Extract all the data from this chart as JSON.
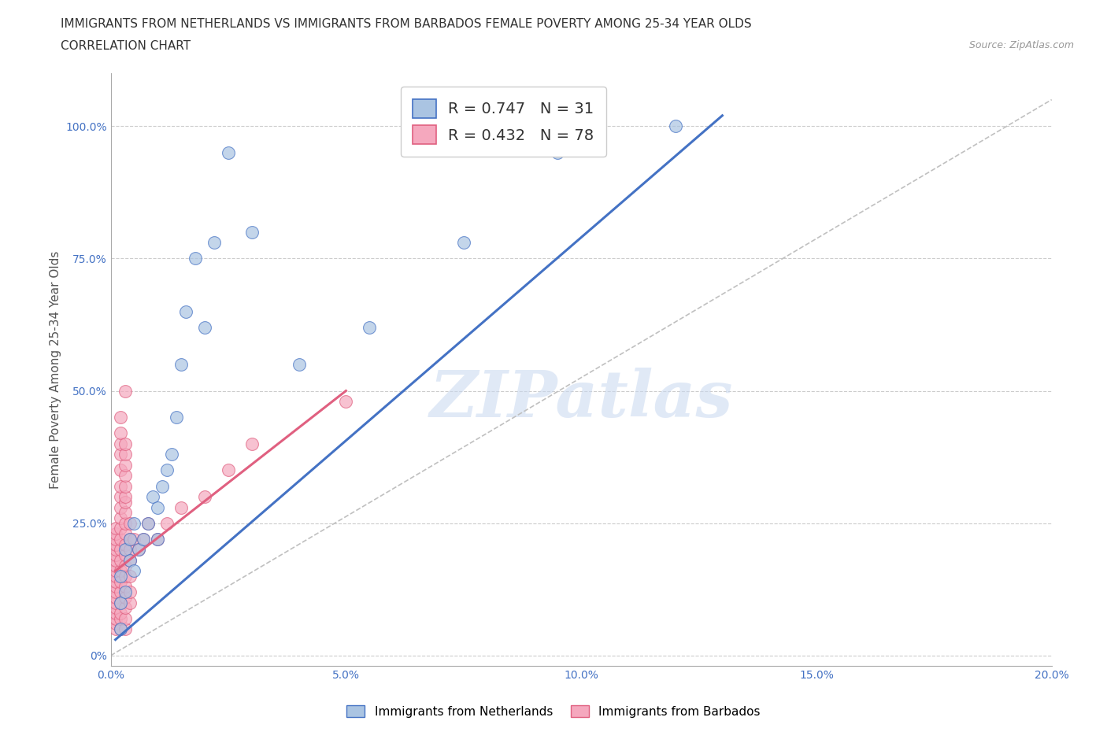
{
  "title_line1": "IMMIGRANTS FROM NETHERLANDS VS IMMIGRANTS FROM BARBADOS FEMALE POVERTY AMONG 25-34 YEAR OLDS",
  "title_line2": "CORRELATION CHART",
  "source_text": "Source: ZipAtlas.com",
  "ylabel": "Female Poverty Among 25-34 Year Olds",
  "xlim": [
    0.0,
    0.2
  ],
  "ylim": [
    -0.02,
    1.1
  ],
  "netherlands_color": "#aac4e2",
  "barbados_color": "#f5a8be",
  "netherlands_line_color": "#4472c4",
  "barbados_line_color": "#e06080",
  "legend_netherlands_label": "Immigrants from Netherlands",
  "legend_barbados_label": "Immigrants from Barbados",
  "netherlands_R": 0.747,
  "netherlands_N": 31,
  "barbados_R": 0.432,
  "barbados_N": 78,
  "ytick_labels": [
    "0%",
    "25.0%",
    "50.0%",
    "75.0%",
    "100.0%"
  ],
  "ytick_values": [
    0.0,
    0.25,
    0.5,
    0.75,
    1.0
  ],
  "xtick_labels": [
    "0.0%",
    "5.0%",
    "10.0%",
    "15.0%",
    "20.0%"
  ],
  "xtick_values": [
    0.0,
    0.05,
    0.1,
    0.15,
    0.2
  ],
  "watermark_text": "ZIPatlas",
  "netherlands_x": [
    0.002,
    0.002,
    0.002,
    0.003,
    0.003,
    0.004,
    0.004,
    0.005,
    0.005,
    0.006,
    0.007,
    0.008,
    0.009,
    0.01,
    0.01,
    0.011,
    0.012,
    0.013,
    0.014,
    0.015,
    0.016,
    0.018,
    0.02,
    0.022,
    0.025,
    0.03,
    0.04,
    0.055,
    0.075,
    0.095,
    0.12
  ],
  "netherlands_y": [
    0.05,
    0.1,
    0.15,
    0.12,
    0.2,
    0.18,
    0.22,
    0.16,
    0.25,
    0.2,
    0.22,
    0.25,
    0.3,
    0.28,
    0.22,
    0.32,
    0.35,
    0.38,
    0.45,
    0.55,
    0.65,
    0.75,
    0.62,
    0.78,
    0.95,
    0.8,
    0.55,
    0.62,
    0.78,
    0.95,
    1.0
  ],
  "barbados_x": [
    0.001,
    0.001,
    0.001,
    0.001,
    0.001,
    0.001,
    0.001,
    0.001,
    0.001,
    0.001,
    0.001,
    0.001,
    0.001,
    0.001,
    0.001,
    0.001,
    0.001,
    0.001,
    0.001,
    0.001,
    0.002,
    0.002,
    0.002,
    0.002,
    0.002,
    0.002,
    0.002,
    0.002,
    0.002,
    0.002,
    0.002,
    0.002,
    0.002,
    0.002,
    0.002,
    0.002,
    0.002,
    0.002,
    0.002,
    0.002,
    0.003,
    0.003,
    0.003,
    0.003,
    0.003,
    0.003,
    0.003,
    0.003,
    0.003,
    0.003,
    0.003,
    0.003,
    0.003,
    0.003,
    0.003,
    0.003,
    0.003,
    0.003,
    0.003,
    0.003,
    0.004,
    0.004,
    0.004,
    0.004,
    0.004,
    0.004,
    0.004,
    0.005,
    0.006,
    0.007,
    0.008,
    0.01,
    0.012,
    0.015,
    0.02,
    0.025,
    0.03,
    0.05
  ],
  "barbados_y": [
    0.05,
    0.06,
    0.07,
    0.08,
    0.09,
    0.1,
    0.11,
    0.12,
    0.13,
    0.14,
    0.15,
    0.16,
    0.17,
    0.18,
    0.19,
    0.2,
    0.21,
    0.22,
    0.23,
    0.24,
    0.05,
    0.07,
    0.08,
    0.1,
    0.12,
    0.14,
    0.16,
    0.18,
    0.2,
    0.22,
    0.24,
    0.26,
    0.28,
    0.3,
    0.32,
    0.35,
    0.38,
    0.4,
    0.42,
    0.45,
    0.05,
    0.07,
    0.09,
    0.11,
    0.13,
    0.15,
    0.17,
    0.19,
    0.21,
    0.23,
    0.25,
    0.27,
    0.29,
    0.3,
    0.32,
    0.34,
    0.36,
    0.38,
    0.4,
    0.5,
    0.1,
    0.12,
    0.15,
    0.18,
    0.2,
    0.22,
    0.25,
    0.22,
    0.2,
    0.22,
    0.25,
    0.22,
    0.25,
    0.28,
    0.3,
    0.35,
    0.4,
    0.48
  ],
  "background_color": "#ffffff",
  "grid_color": "#cccccc",
  "title_fontsize": 11,
  "axis_label_fontsize": 11,
  "tick_fontsize": 10,
  "nl_line_x0": 0.001,
  "nl_line_x1": 0.13,
  "nl_line_y0": 0.03,
  "nl_line_y1": 1.02,
  "bb_line_x0": 0.001,
  "bb_line_x1": 0.05,
  "bb_line_y0": 0.16,
  "bb_line_y1": 0.5,
  "ref_line_x0": 0.0,
  "ref_line_x1": 0.2,
  "ref_line_y0": 0.0,
  "ref_line_y1": 1.05
}
